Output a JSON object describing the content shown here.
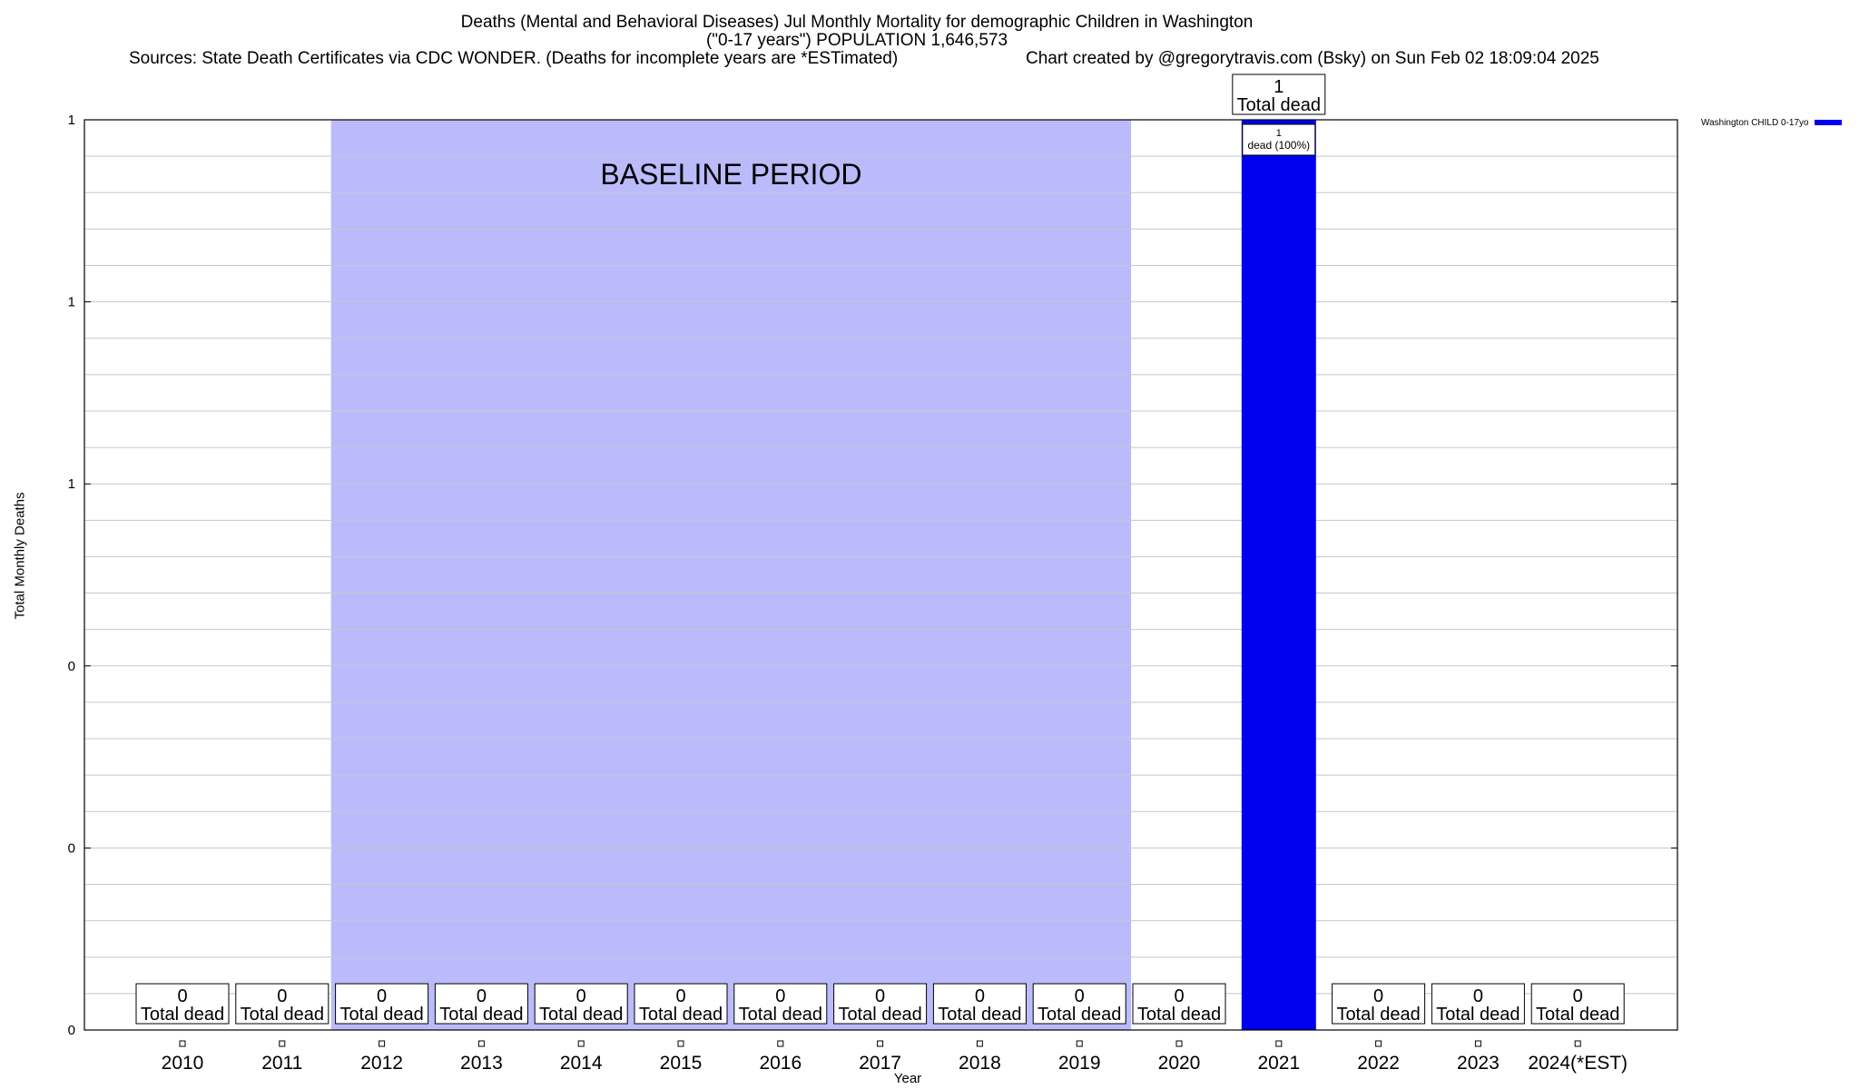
{
  "chart_data": {
    "type": "bar",
    "title": "Deaths (Mental and Behavioral Diseases) Jul Monthly Mortality for demographic Children in Washington",
    "subtitle": "(\"0-17 years\") POPULATION 1,646,573",
    "sources": "Sources: State Death Certificates via CDC WONDER. (Deaths for incomplete years are *ESTimated)",
    "credit": "Chart created by @gregorytravis.com (Bsky) on Sun Feb 02 18:09:04 2025",
    "xlabel": "Year",
    "ylabel": "Total Monthly Deaths",
    "ylim": [
      0,
      1
    ],
    "yticks": [
      {
        "value": 0,
        "label": "0"
      },
      {
        "value": 0.2,
        "label": "0"
      },
      {
        "value": 0.4,
        "label": "0"
      },
      {
        "value": 0.6,
        "label": "1"
      },
      {
        "value": 0.8,
        "label": "1"
      },
      {
        "value": 1.0,
        "label": "1"
      }
    ],
    "categories": [
      "2010",
      "2011",
      "2012",
      "2013",
      "2014",
      "2015",
      "2016",
      "2017",
      "2018",
      "2019",
      "2020",
      "2021",
      "2022",
      "2023",
      "2024(*EST)"
    ],
    "series": [
      {
        "name": "Washington CHILD 0-17yo",
        "color": "#0000ee",
        "values": [
          0,
          0,
          0,
          0,
          0,
          0,
          0,
          0,
          0,
          0,
          0,
          1,
          0,
          0,
          0
        ]
      }
    ],
    "total_labels": [
      "0",
      "0",
      "0",
      "0",
      "0",
      "0",
      "0",
      "0",
      "0",
      "0",
      "0",
      "1",
      "0",
      "0",
      "0"
    ],
    "total_suffix": "Total dead",
    "bar_labels": [
      {
        "index": 11,
        "line1": "1",
        "line2": "dead (100%)"
      }
    ],
    "baseline": {
      "label": "BASELINE PERIOD",
      "from": "2012",
      "to": "2019",
      "color": "#bbbbfc"
    },
    "grid": true,
    "legend_position": "top-right"
  }
}
